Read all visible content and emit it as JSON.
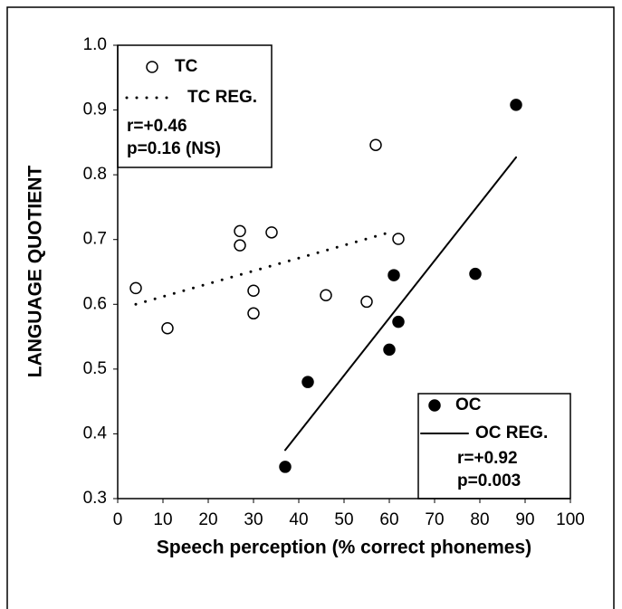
{
  "chart_data": {
    "type": "scatter",
    "xlabel": "Speech perception (% correct phonemes)",
    "ylabel": "LANGUAGE QUOTIENT",
    "xlim": [
      0,
      100
    ],
    "xticks": [
      0,
      10,
      20,
      30,
      40,
      50,
      60,
      70,
      80,
      90,
      100
    ],
    "ylim": [
      0.3,
      1.0
    ],
    "yticks": [
      0.3,
      0.4,
      0.5,
      0.6,
      0.7,
      0.8,
      0.9,
      {
        "value": 1.0,
        "label": "1.0"
      }
    ],
    "series": [
      {
        "name": "TC",
        "color": "#000",
        "mode": "markers",
        "fill": "none",
        "x": [
          4,
          11,
          27,
          27,
          30,
          30,
          34,
          46,
          55,
          57,
          62
        ],
        "values": [
          0.625,
          0.563,
          0.713,
          0.691,
          0.621,
          0.586,
          0.711,
          0.614,
          0.604,
          0.846,
          0.701
        ]
      },
      {
        "name": "TC REG.",
        "color": "#000",
        "mode": "line",
        "dash": "dotted",
        "x": [
          4,
          61
        ],
        "values": [
          0.6,
          0.713
        ]
      },
      {
        "name": "OC",
        "color": "#000",
        "mode": "markers",
        "fill": "#000",
        "x": [
          37,
          42,
          60,
          61,
          62,
          79,
          88
        ],
        "values": [
          0.349,
          0.48,
          0.53,
          0.645,
          0.573,
          0.647,
          0.908
        ]
      },
      {
        "name": "OC REG.",
        "color": "#000",
        "mode": "line",
        "dash": "solid",
        "x": [
          37,
          88
        ],
        "values": [
          0.375,
          0.827
        ]
      }
    ],
    "annotations": [
      "r=+0.46",
      "p=0.16 (NS)",
      "r=+0.92",
      "p=0.003"
    ]
  }
}
